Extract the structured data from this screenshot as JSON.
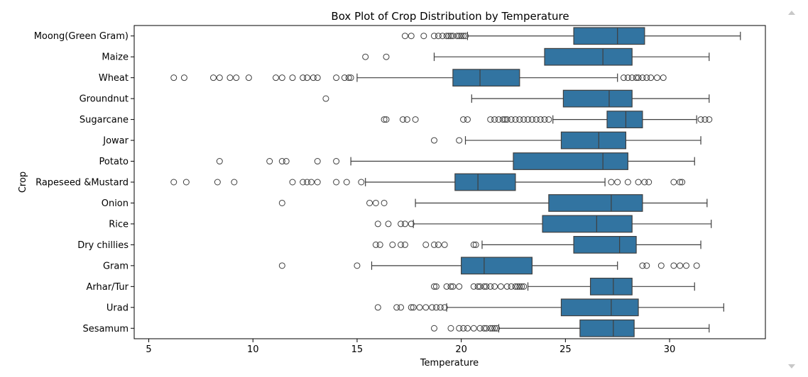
{
  "chart_data": {
    "type": "box",
    "orientation": "horizontal",
    "title": "Box Plot of Crop Distribution by Temperature",
    "xlabel": "Temperature",
    "ylabel": "Crop",
    "xlim": [
      4.3,
      34.6
    ],
    "xticks": [
      5,
      10,
      15,
      20,
      25,
      30
    ],
    "grid": false,
    "box_color": "#3274a1",
    "line_color": "#3f3f3f",
    "categories": [
      "Moong(Green Gram)",
      "Maize",
      "Wheat",
      "Groundnut",
      "Sugarcane",
      "Jowar",
      "Potato",
      "Rapeseed &Mustard",
      "Onion",
      "Rice",
      "Dry chillies",
      "Gram",
      "Arhar/Tur",
      "Urad",
      "Sesamum"
    ],
    "boxes": [
      {
        "crop": "Moong(Green Gram)",
        "whisker_low": 20.3,
        "q1": 25.4,
        "median": 27.5,
        "q3": 28.8,
        "whisker_high": 33.4,
        "outliers": [
          17.3,
          17.6,
          18.2,
          18.7,
          18.9,
          19.1,
          19.3,
          19.4,
          19.5,
          19.6,
          19.8,
          19.9,
          20.0,
          20.1,
          20.2
        ]
      },
      {
        "crop": "Maize",
        "whisker_low": 18.7,
        "q1": 24.0,
        "median": 26.8,
        "q3": 28.2,
        "whisker_high": 31.9,
        "outliers": [
          15.4,
          16.4
        ]
      },
      {
        "crop": "Wheat",
        "whisker_low": 15.0,
        "q1": 19.6,
        "median": 20.9,
        "q3": 22.8,
        "whisker_high": 27.5,
        "outliers": [
          6.2,
          6.7,
          8.1,
          8.4,
          8.9,
          9.2,
          9.8,
          11.1,
          11.4,
          11.9,
          12.4,
          12.6,
          12.9,
          13.1,
          14.0,
          14.4,
          14.6,
          14.7,
          27.8,
          28.0,
          28.2,
          28.4,
          28.5,
          28.7,
          28.9,
          29.1,
          29.4,
          29.7
        ]
      },
      {
        "crop": "Groundnut",
        "whisker_low": 20.5,
        "q1": 24.9,
        "median": 27.1,
        "q3": 28.2,
        "whisker_high": 31.9,
        "outliers": [
          13.5
        ]
      },
      {
        "crop": "Sugarcane",
        "whisker_low": 24.4,
        "q1": 27.0,
        "median": 27.9,
        "q3": 28.7,
        "whisker_high": 31.3,
        "outliers": [
          16.3,
          16.4,
          17.2,
          17.4,
          17.8,
          20.1,
          20.3,
          21.4,
          21.6,
          21.8,
          22.0,
          22.1,
          22.2,
          22.4,
          22.6,
          22.8,
          23.0,
          23.2,
          23.4,
          23.6,
          23.8,
          24.0,
          24.2,
          31.5,
          31.7,
          31.9
        ]
      },
      {
        "crop": "Jowar",
        "whisker_low": 20.2,
        "q1": 24.8,
        "median": 26.6,
        "q3": 27.9,
        "whisker_high": 31.5,
        "outliers": [
          18.7,
          19.9
        ]
      },
      {
        "crop": "Potato",
        "whisker_low": 14.7,
        "q1": 22.5,
        "median": 26.8,
        "q3": 28.0,
        "whisker_high": 31.2,
        "outliers": [
          8.4,
          10.8,
          11.4,
          11.6,
          13.1,
          14.0
        ]
      },
      {
        "crop": "Rapeseed &Mustard",
        "whisker_low": 15.4,
        "q1": 19.7,
        "median": 20.8,
        "q3": 22.6,
        "whisker_high": 26.9,
        "outliers": [
          6.2,
          6.8,
          8.3,
          9.1,
          11.9,
          12.4,
          12.6,
          12.8,
          13.1,
          14.0,
          14.5,
          15.2,
          27.2,
          27.5,
          28.0,
          28.5,
          28.8,
          29.0,
          30.2,
          30.5,
          30.6
        ]
      },
      {
        "crop": "Onion",
        "whisker_low": 17.8,
        "q1": 24.2,
        "median": 27.2,
        "q3": 28.7,
        "whisker_high": 31.8,
        "outliers": [
          11.4,
          15.6,
          15.9,
          16.3
        ]
      },
      {
        "crop": "Rice",
        "whisker_low": 17.7,
        "q1": 23.9,
        "median": 26.5,
        "q3": 28.2,
        "whisker_high": 32.0,
        "outliers": [
          16.0,
          16.5,
          17.1,
          17.3,
          17.6
        ]
      },
      {
        "crop": "Dry chillies",
        "whisker_low": 21.0,
        "q1": 25.4,
        "median": 27.6,
        "q3": 28.4,
        "whisker_high": 31.5,
        "outliers": [
          15.9,
          16.1,
          16.7,
          17.1,
          17.3,
          18.3,
          18.7,
          18.9,
          19.2,
          20.6,
          20.7
        ]
      },
      {
        "crop": "Gram",
        "whisker_low": 15.7,
        "q1": 20.0,
        "median": 21.1,
        "q3": 23.4,
        "whisker_high": 27.5,
        "outliers": [
          11.4,
          15.0,
          28.7,
          28.9,
          29.6,
          30.2,
          30.5,
          30.8,
          31.3
        ]
      },
      {
        "crop": "Arhar/Tur",
        "whisker_low": 23.2,
        "q1": 26.2,
        "median": 27.3,
        "q3": 28.2,
        "whisker_high": 31.2,
        "outliers": [
          18.7,
          18.8,
          19.3,
          19.5,
          19.6,
          19.9,
          20.6,
          20.8,
          20.9,
          21.1,
          21.2,
          21.4,
          21.6,
          21.9,
          22.2,
          22.4,
          22.6,
          22.7,
          22.8,
          22.9,
          23.0
        ]
      },
      {
        "crop": "Urad",
        "whisker_low": 19.3,
        "q1": 24.8,
        "median": 27.2,
        "q3": 28.5,
        "whisker_high": 32.6,
        "outliers": [
          16.0,
          16.9,
          17.1,
          17.6,
          17.7,
          18.0,
          18.3,
          18.6,
          18.8,
          19.0,
          19.2
        ]
      },
      {
        "crop": "Sesamum",
        "whisker_low": 21.8,
        "q1": 25.7,
        "median": 27.3,
        "q3": 28.3,
        "whisker_high": 31.9,
        "outliers": [
          18.7,
          19.5,
          19.9,
          20.1,
          20.3,
          20.6,
          20.9,
          21.1,
          21.2,
          21.4,
          21.5,
          21.6,
          21.7
        ]
      }
    ]
  }
}
